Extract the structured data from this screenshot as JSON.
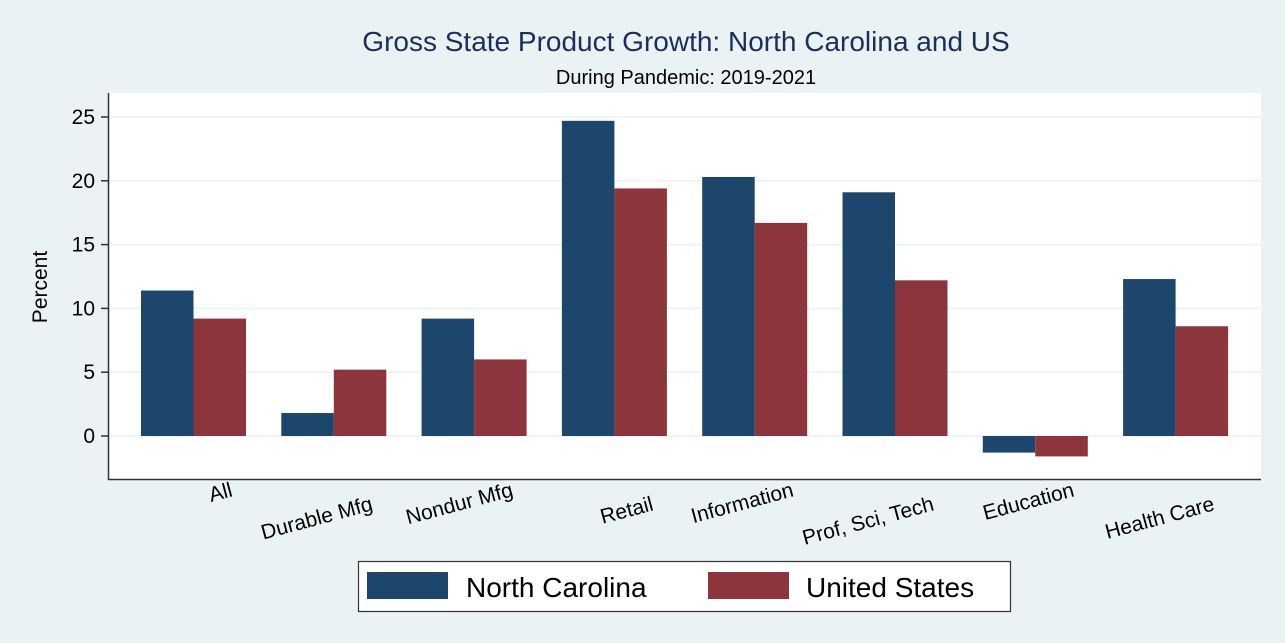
{
  "chart_data": {
    "type": "bar",
    "title": "Gross State Product Growth: North Carolina and US",
    "subtitle": "During Pandemic: 2019-2021",
    "xlabel": "",
    "ylabel": "Percent",
    "ylim": [
      -3.4,
      27.0
    ],
    "yticks": [
      0,
      5,
      10,
      15,
      20,
      25
    ],
    "ytick_labels": [
      "0",
      "5",
      "10",
      "15",
      "20",
      "25"
    ],
    "grid": true,
    "legend_position": "bottom",
    "categories": [
      "All",
      "Durable Mfg",
      "Nondur Mfg",
      "Retail",
      "Information",
      "Prof, Sci, Tech",
      "Education",
      "Health Care"
    ],
    "series": [
      {
        "name": "North Carolina",
        "color": "#1c466c",
        "values": [
          11.4,
          1.8,
          9.2,
          24.7,
          20.3,
          19.1,
          -1.3,
          12.3
        ]
      },
      {
        "name": "United States",
        "color": "#8d353c",
        "values": [
          9.2,
          5.2,
          6.0,
          19.4,
          16.7,
          12.2,
          -1.6,
          8.6
        ]
      }
    ],
    "background_color": "#eaf2f3",
    "plot_background_color": "#ffffff",
    "gridline_color": "#eaf2f3"
  }
}
